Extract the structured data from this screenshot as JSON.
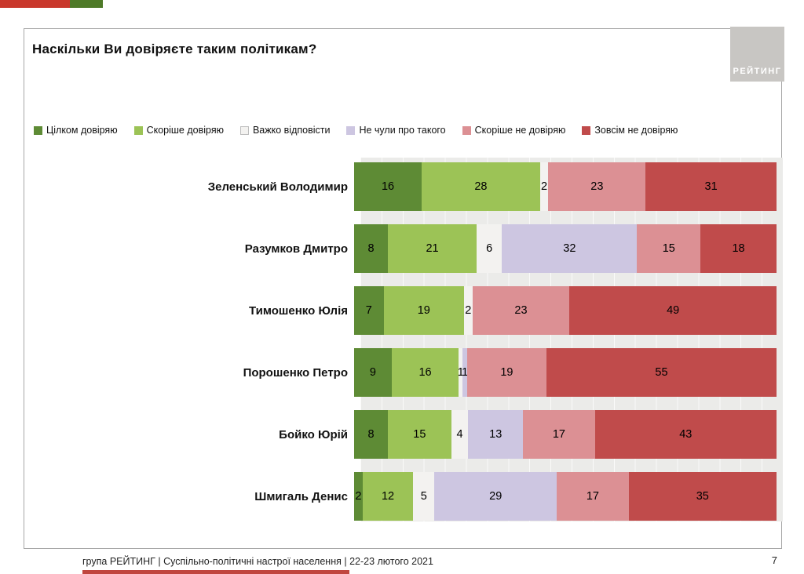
{
  "page": {
    "title": "Наскільки Ви довіряєте таким політикам?",
    "logo_text": "РЕЙТИНГ",
    "footer_text": "група РЕЙТИНГ | Суспільно-політичні настрої населення  | 22-23 лютого 2021",
    "page_number": "7"
  },
  "colors": {
    "accent_red": "#c9382c",
    "accent_green": "#4e7a28",
    "bottom_strip_red": "#c0463f",
    "plot_background": "#ebebe9",
    "card_border": "#a6a6a6",
    "logo_background": "#c8c6c3"
  },
  "chart_data": {
    "type": "bar",
    "orientation": "horizontal",
    "stacked": true,
    "grid": true,
    "legend_position": "top",
    "title": "Наскільки Ви довіряєте таким політикам?",
    "xlabel": "",
    "ylabel": "",
    "xlim": [
      0,
      100
    ],
    "categories": [
      "Зеленський Володимир",
      "Разумков Дмитро",
      "Тимошенко Юлія",
      "Порошенко Петро",
      "Бойко Юрій",
      "Шмигаль Денис"
    ],
    "series": [
      {
        "name": "Цілком довіряю",
        "color": "#5e8b35",
        "values": [
          16,
          8,
          7,
          9,
          8,
          2
        ]
      },
      {
        "name": "Скоріше довіряю",
        "color": "#9cc356",
        "values": [
          28,
          21,
          19,
          16,
          15,
          12
        ]
      },
      {
        "name": "Важко відповісти",
        "color": "#f3f2f0",
        "values": [
          2,
          6,
          2,
          1,
          4,
          5
        ]
      },
      {
        "name": "Не чули про такого",
        "color": "#cdc6e1",
        "values": [
          0,
          32,
          0,
          1,
          13,
          29
        ]
      },
      {
        "name": "Скоріше не довіряю",
        "color": "#dc9094",
        "values": [
          23,
          15,
          23,
          19,
          17,
          17
        ]
      },
      {
        "name": "Зовсім не довіряю",
        "color": "#c04b4b",
        "values": [
          31,
          18,
          49,
          55,
          43,
          35
        ]
      }
    ]
  }
}
